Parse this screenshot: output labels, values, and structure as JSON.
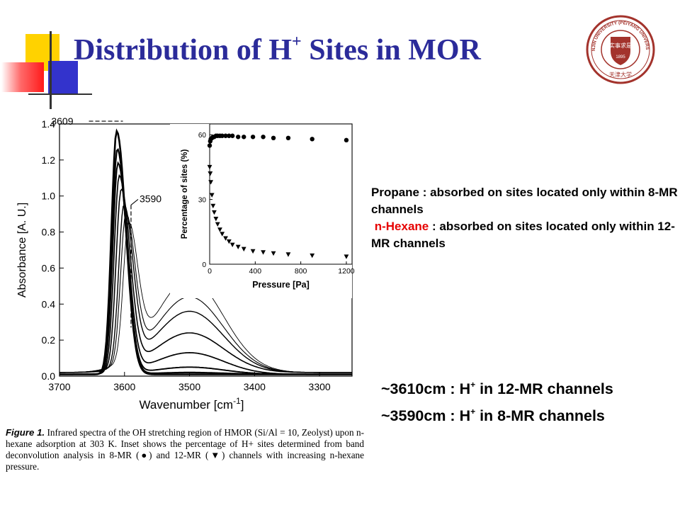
{
  "slide": {
    "title_prefix": "Distribution of H",
    "title_sup": "+",
    "title_suffix": " Sites in MOR"
  },
  "colors": {
    "title": "#2b2b9a",
    "hexane_label": "#e60000",
    "logo": "#a3332c"
  },
  "logo": {
    "arc_text": "TIANJIN UNIVERSITY (PEIYANG UNIVERSITY)",
    "year": "1895",
    "motto": "实事求是",
    "bottom_text": "天津大学"
  },
  "notes": {
    "line1": "Propane : absorbed on sites located only within 8-MR channels",
    "hexane_word": "n-Hexane",
    "line2": " : absorbed on sites located only within 12-MR channels"
  },
  "assignments": [
    {
      "text": "~3610cm : H",
      "sup": "+",
      "rest": " in 12-MR channels"
    },
    {
      "text": "~3590cm : H",
      "sup": "+",
      "rest": " in 8-MR channels"
    }
  ],
  "caption": {
    "label": "Figure 1.",
    "text": "Infrared spectra of the OH stretching region of HMOR (Si/Al = 10, Zeolyst) upon n-hexane adsorption at 303 K. Inset shows the percentage of H+ sites determined from band deconvolution analysis in 8-MR (●) and 12-MR (▼) channels with increasing n-hexane pressure."
  },
  "chart_data": [
    {
      "type": "line",
      "xlabel": "Wavenumber [cm",
      "xlabel_sup": "-1",
      "xlabel_end": "]",
      "ylabel": "Absorbance [A. U.]",
      "xlim": [
        3700,
        3250
      ],
      "ylim": [
        0,
        1.4
      ],
      "x_reversed": true,
      "xticks": [
        3700,
        3600,
        3500,
        3400,
        3300
      ],
      "yticks": [
        0.0,
        0.2,
        0.4,
        0.6,
        0.8,
        1.0,
        1.2,
        1.4
      ],
      "annotations": [
        {
          "text": "3609",
          "x": 3609,
          "y": 1.38
        },
        {
          "text": "3590",
          "x": 3590,
          "y": 0.95
        }
      ],
      "series": [
        {
          "peak1": 1.35,
          "x1": 3612,
          "broad": 0.0,
          "tail": 0.01
        },
        {
          "peak1": 1.25,
          "x1": 3611,
          "broad": 0.01,
          "tail": 0.01
        },
        {
          "peak1": 1.17,
          "x1": 3610,
          "broad": 0.04,
          "tail": 0.01
        },
        {
          "peak1": 1.09,
          "x1": 3608,
          "broad": 0.12,
          "tail": 0.01
        },
        {
          "peak1": 0.99,
          "x1": 3605,
          "broad": 0.22,
          "tail": 0.02
        },
        {
          "peak1": 0.88,
          "x1": 3601,
          "broad": 0.34,
          "tail": 0.02
        },
        {
          "peak1": 0.81,
          "x1": 3598,
          "broad": 0.42,
          "tail": 0.02
        },
        {
          "peak1": 0.73,
          "x1": 3594,
          "broad": 0.52,
          "tail": 0.02
        }
      ]
    },
    {
      "type": "scatter",
      "xlabel": "Pressure [Pa]",
      "ylabel": "Percentage of sites (%)",
      "xlim": [
        0,
        1250
      ],
      "ylim": [
        0,
        65
      ],
      "xticks": [
        0,
        400,
        800,
        1200
      ],
      "yticks": [
        0,
        30,
        60
      ],
      "series": [
        {
          "name": "8-MR",
          "marker": "circle",
          "x": [
            0,
            5,
            10,
            20,
            30,
            40,
            55,
            70,
            90,
            110,
            140,
            170,
            200,
            250,
            300,
            380,
            470,
            560,
            690,
            900,
            1200
          ],
          "y": [
            55,
            57,
            58,
            58.5,
            59,
            59,
            59.5,
            59.5,
            59.5,
            59.5,
            59.5,
            59.5,
            59.5,
            59,
            59,
            59,
            59,
            58.5,
            58.5,
            58,
            57.5
          ]
        },
        {
          "name": "12-MR",
          "marker": "triangle-down",
          "x": [
            0,
            5,
            10,
            20,
            30,
            40,
            55,
            70,
            90,
            110,
            140,
            170,
            200,
            250,
            300,
            380,
            470,
            560,
            690,
            900,
            1200
          ],
          "y": [
            45,
            42,
            38,
            32,
            27,
            24,
            21,
            18.5,
            16,
            14,
            12,
            10.5,
            9,
            8,
            7,
            6,
            5.5,
            5,
            4.5,
            4,
            3.5
          ]
        }
      ]
    }
  ]
}
